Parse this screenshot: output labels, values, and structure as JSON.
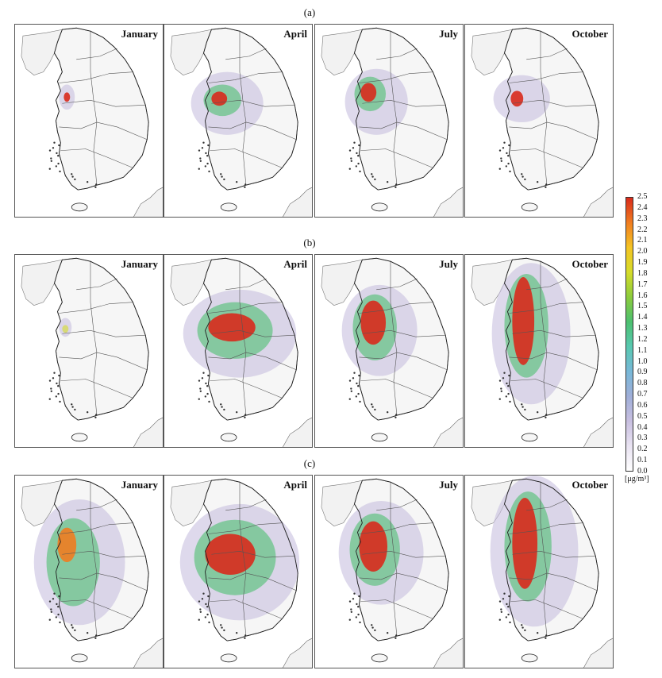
{
  "row_labels": [
    "(a)",
    "(b)",
    "(c)"
  ],
  "months": [
    "January",
    "April",
    "July",
    "October"
  ],
  "colorbar": {
    "ticks": [
      "2.5",
      "2.4",
      "2.3",
      "2.2",
      "2.1",
      "2.0",
      "1.9",
      "1.8",
      "1.7",
      "1.6",
      "1.5",
      "1.4",
      "1.3",
      "1.2",
      "1.1",
      "1.0",
      "0.9",
      "0.8",
      "0.7",
      "0.6",
      "0.5",
      "0.4",
      "0.3",
      "0.2",
      "0.1",
      "0.0"
    ],
    "unit": "[μg/m³]",
    "colors": [
      "#ffffff",
      "#e9e3f2",
      "#c8bfe0",
      "#9faed8",
      "#78b8d8",
      "#58c8b0",
      "#4cc070",
      "#8ccc3c",
      "#d6dc2a",
      "#f4c424",
      "#f07c20",
      "#d82a1c"
    ]
  },
  "chart_data": {
    "type": "heatmap",
    "scale": {
      "min": 0.0,
      "max": 2.5,
      "unit": "μg/m³"
    },
    "rows": [
      {
        "label": "(a)",
        "panels": [
          {
            "month": "January",
            "peak": 2.5
          },
          {
            "month": "April",
            "peak": 2.5
          },
          {
            "month": "July",
            "peak": 2.5
          },
          {
            "month": "October",
            "peak": 2.5
          }
        ]
      },
      {
        "label": "(b)",
        "panels": [
          {
            "month": "January",
            "peak": 1.9
          },
          {
            "month": "April",
            "peak": 2.5
          },
          {
            "month": "July",
            "peak": 2.5
          },
          {
            "month": "October",
            "peak": 2.5
          }
        ]
      },
      {
        "label": "(c)",
        "panels": [
          {
            "month": "January",
            "peak": 2.3
          },
          {
            "month": "April",
            "peak": 2.5
          },
          {
            "month": "July",
            "peak": 2.5
          },
          {
            "month": "October",
            "peak": 2.5
          }
        ]
      }
    ]
  }
}
